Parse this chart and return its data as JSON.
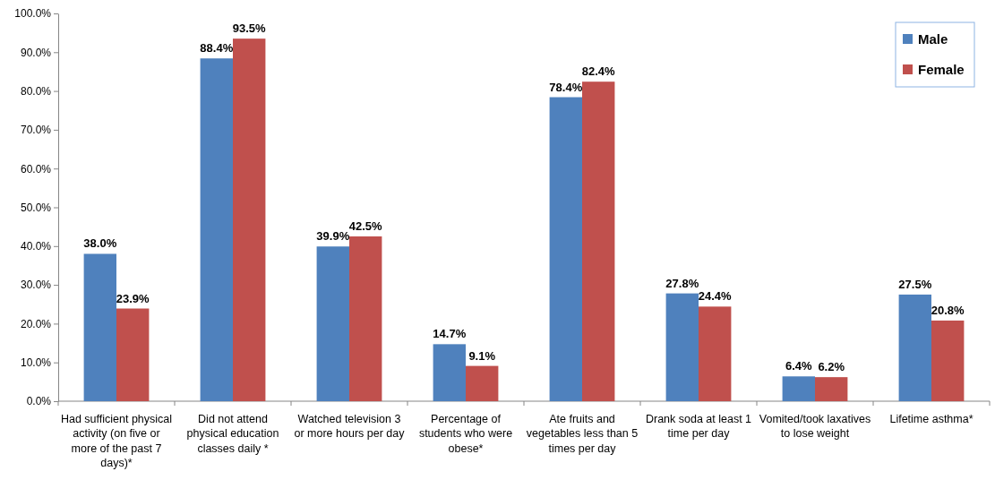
{
  "chart_data": {
    "type": "bar",
    "categories": [
      "Had sufficient physical activity (on five or more of the past 7 days)*",
      "Did not attend physical education classes daily *",
      "Watched television 3 or more hours per day",
      "Percentage of students who were obese*",
      "Ate fruits and vegetables less than 5 times per day",
      "Drank soda at least 1 time per day",
      "Vomited/took laxatives to lose weight",
      "Lifetime asthma*"
    ],
    "series": [
      {
        "name": "Male",
        "color": "#4f81bd",
        "values": [
          38.0,
          88.4,
          39.9,
          14.7,
          78.4,
          27.8,
          6.4,
          27.5
        ],
        "value_labels": [
          "38.0%",
          "88.4%",
          "39.9%",
          "14.7%",
          "78.4%",
          "27.8%",
          "6.4%",
          "27.5%"
        ]
      },
      {
        "name": "Female",
        "color": "#c0504d",
        "values": [
          23.9,
          93.5,
          42.5,
          9.1,
          82.4,
          24.4,
          6.2,
          20.8
        ],
        "value_labels": [
          "23.9%",
          "93.5%",
          "42.5%",
          "9.1%",
          "82.4%",
          "24.4%",
          "6.2%",
          "20.8%"
        ]
      }
    ],
    "ylim": [
      0,
      100
    ],
    "yticks": [
      {
        "value": 0,
        "label": "0.0%"
      },
      {
        "value": 10,
        "label": "10.0%"
      },
      {
        "value": 20,
        "label": "20.0%"
      },
      {
        "value": 30,
        "label": "30.0%"
      },
      {
        "value": 40,
        "label": "40.0%"
      },
      {
        "value": 50,
        "label": "50.0%"
      },
      {
        "value": 60,
        "label": "60.0%"
      },
      {
        "value": 70,
        "label": "70.0%"
      },
      {
        "value": 80,
        "label": "80.0%"
      },
      {
        "value": 90,
        "label": "90.0%"
      },
      {
        "value": 100,
        "label": "100.0%"
      }
    ],
    "legend": "top right"
  }
}
